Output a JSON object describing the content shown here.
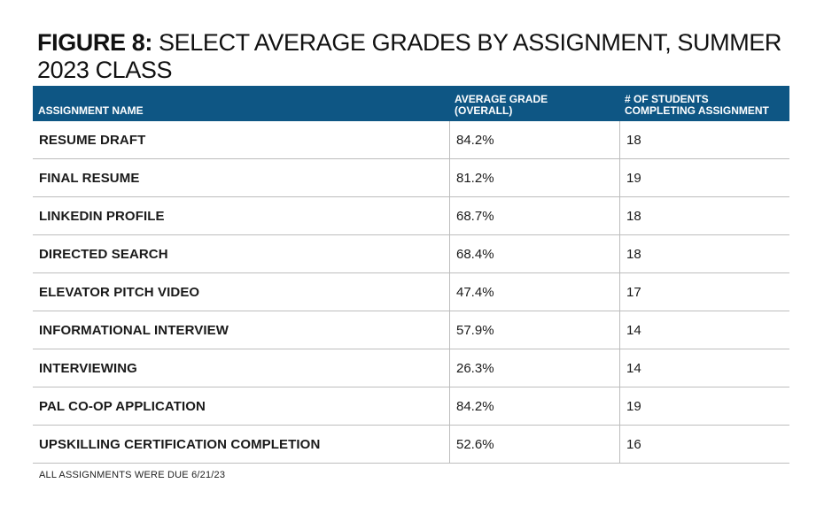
{
  "figure": {
    "label": "FIGURE 8:",
    "title": "SELECT AVERAGE GRADES BY ASSIGNMENT, SUMMER 2023 CLASS"
  },
  "table": {
    "headers": {
      "assignment": "ASSIGNMENT NAME",
      "average_grade": "AVERAGE GRADE\n(OVERALL)",
      "students": "# OF STUDENTS\nCOMPLETING ASSIGNMENT"
    },
    "rows": [
      {
        "assignment": "RESUME DRAFT",
        "average_grade": "84.2%",
        "students": "18"
      },
      {
        "assignment": "FINAL RESUME",
        "average_grade": "81.2%",
        "students": "19"
      },
      {
        "assignment": "LINKEDIN PROFILE",
        "average_grade": "68.7%",
        "students": "18"
      },
      {
        "assignment": "DIRECTED SEARCH",
        "average_grade": "68.4%",
        "students": "18"
      },
      {
        "assignment": "ELEVATOR PITCH VIDEO",
        "average_grade": "47.4%",
        "students": "17"
      },
      {
        "assignment": "INFORMATIONAL INTERVIEW",
        "average_grade": "57.9%",
        "students": "14"
      },
      {
        "assignment": "INTERVIEWING",
        "average_grade": "26.3%",
        "students": "14"
      },
      {
        "assignment": "PAL CO-OP APPLICATION",
        "average_grade": "84.2%",
        "students": "19"
      },
      {
        "assignment": "UPSKILLING CERTIFICATION COMPLETION",
        "average_grade": "52.6%",
        "students": "16"
      }
    ]
  },
  "footnote": "ALL ASSIGNMENTS WERE DUE 6/21/23",
  "colors": {
    "header_bg": "#0e5684",
    "header_text": "#ffffff",
    "row_divider": "#bdbdbd"
  }
}
